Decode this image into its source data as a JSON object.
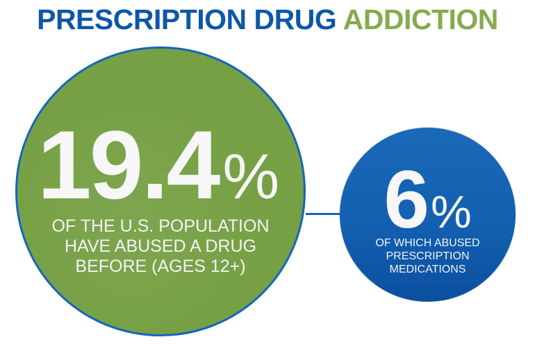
{
  "title": {
    "part1": "PRESCRIPTION DRUG",
    "part2": "ADDICTION",
    "colors": {
      "part1": "#0d57a8",
      "part2": "#86ab4d"
    }
  },
  "stat_primary": {
    "value": "19.4",
    "unit": "%",
    "lines": [
      "OF THE U.S. POPULATION",
      "HAVE ABUSED A DRUG",
      "BEFORE (AGES 12+)"
    ],
    "circle_color": "#76a044",
    "border_color": "#1565c0"
  },
  "stat_secondary": {
    "value": "6",
    "unit": "%",
    "lines": [
      "OF WHICH ABUSED",
      "PRESCRIPTION",
      "MEDICATIONS"
    ],
    "circle_color": "#1460b0"
  },
  "connector_color": "#1565c0"
}
